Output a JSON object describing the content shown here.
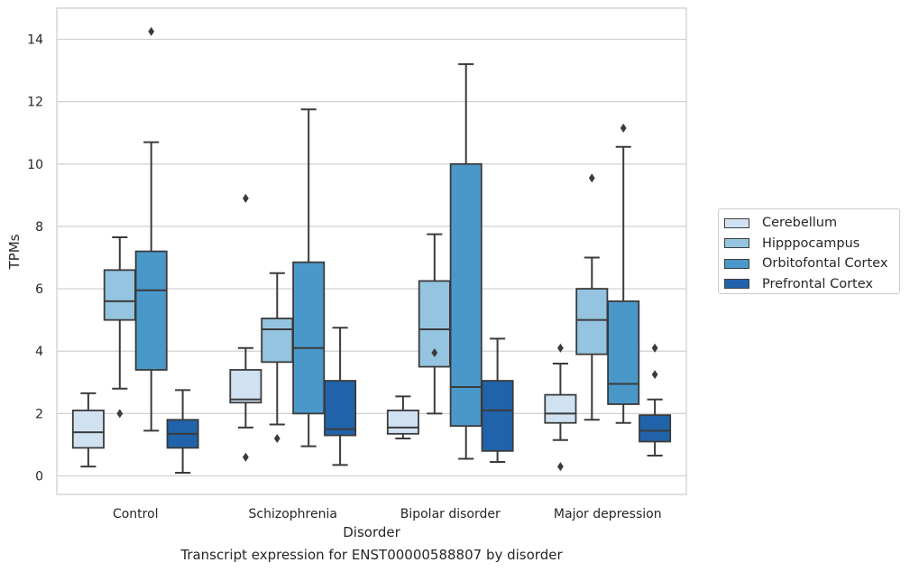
{
  "chart_data": {
    "type": "box",
    "xlabel": "Disorder",
    "ylabel": "TPMs",
    "caption": "Transcript expression for ENST00000588807 by disorder",
    "ylim": [
      -0.6,
      15
    ],
    "yticks": [
      0,
      2,
      4,
      6,
      8,
      10,
      12,
      14
    ],
    "grid": true,
    "legend_position": "right",
    "categories": [
      "Control",
      "Schizophrenia",
      "Bipolar disorder",
      "Major depression"
    ],
    "series": [
      {
        "name": "Cerebellum",
        "color": "#d0e1f2",
        "boxes": [
          {
            "whislo": 0.3,
            "q1": 0.9,
            "med": 1.4,
            "q3": 2.1,
            "whishi": 2.65,
            "fliers": []
          },
          {
            "whislo": 1.55,
            "q1": 2.35,
            "med": 2.45,
            "q3": 3.4,
            "whishi": 4.1,
            "fliers": [
              0.6,
              8.9
            ]
          },
          {
            "whislo": 1.2,
            "q1": 1.35,
            "med": 1.55,
            "q3": 2.1,
            "whishi": 2.55,
            "fliers": []
          },
          {
            "whislo": 1.15,
            "q1": 1.7,
            "med": 2.0,
            "q3": 2.6,
            "whishi": 3.6,
            "fliers": [
              0.3,
              4.1
            ]
          }
        ]
      },
      {
        "name": "Hipppocampus",
        "color": "#94c4df",
        "boxes": [
          {
            "whislo": 2.8,
            "q1": 5.0,
            "med": 5.6,
            "q3": 6.6,
            "whishi": 7.65,
            "fliers": [
              2.0
            ]
          },
          {
            "whislo": 1.65,
            "q1": 3.65,
            "med": 4.7,
            "q3": 5.05,
            "whishi": 6.5,
            "fliers": [
              1.2
            ]
          },
          {
            "whislo": 2.0,
            "q1": 3.5,
            "med": 4.7,
            "q3": 6.25,
            "whishi": 7.75,
            "fliers": [
              3.95
            ]
          },
          {
            "whislo": 1.8,
            "q1": 3.9,
            "med": 5.0,
            "q3": 6.0,
            "whishi": 7.0,
            "fliers": [
              9.55
            ]
          }
        ]
      },
      {
        "name": "Orbitofontal Cortex",
        "color": "#4a98c9",
        "boxes": [
          {
            "whislo": 1.45,
            "q1": 3.4,
            "med": 5.95,
            "q3": 7.2,
            "whishi": 10.7,
            "fliers": [
              14.25
            ]
          },
          {
            "whislo": 0.95,
            "q1": 2.0,
            "med": 4.1,
            "q3": 6.85,
            "whishi": 11.75,
            "fliers": []
          },
          {
            "whislo": 0.55,
            "q1": 1.6,
            "med": 2.85,
            "q3": 10.0,
            "whishi": 13.2,
            "fliers": []
          },
          {
            "whislo": 1.7,
            "q1": 2.3,
            "med": 2.95,
            "q3": 5.6,
            "whishi": 10.55,
            "fliers": [
              11.15
            ]
          }
        ]
      },
      {
        "name": "Prefrontal Cortex",
        "color": "#2163aa",
        "boxes": [
          {
            "whislo": 0.1,
            "q1": 0.9,
            "med": 1.35,
            "q3": 1.8,
            "whishi": 2.75,
            "fliers": []
          },
          {
            "whislo": 0.35,
            "q1": 1.3,
            "med": 1.5,
            "q3": 3.05,
            "whishi": 4.75,
            "fliers": []
          },
          {
            "whislo": 0.45,
            "q1": 0.8,
            "med": 2.1,
            "q3": 3.05,
            "whishi": 4.4,
            "fliers": []
          },
          {
            "whislo": 0.65,
            "q1": 1.1,
            "med": 1.45,
            "q3": 1.95,
            "whishi": 2.45,
            "fliers": [
              3.25,
              4.1
            ]
          }
        ]
      }
    ]
  }
}
